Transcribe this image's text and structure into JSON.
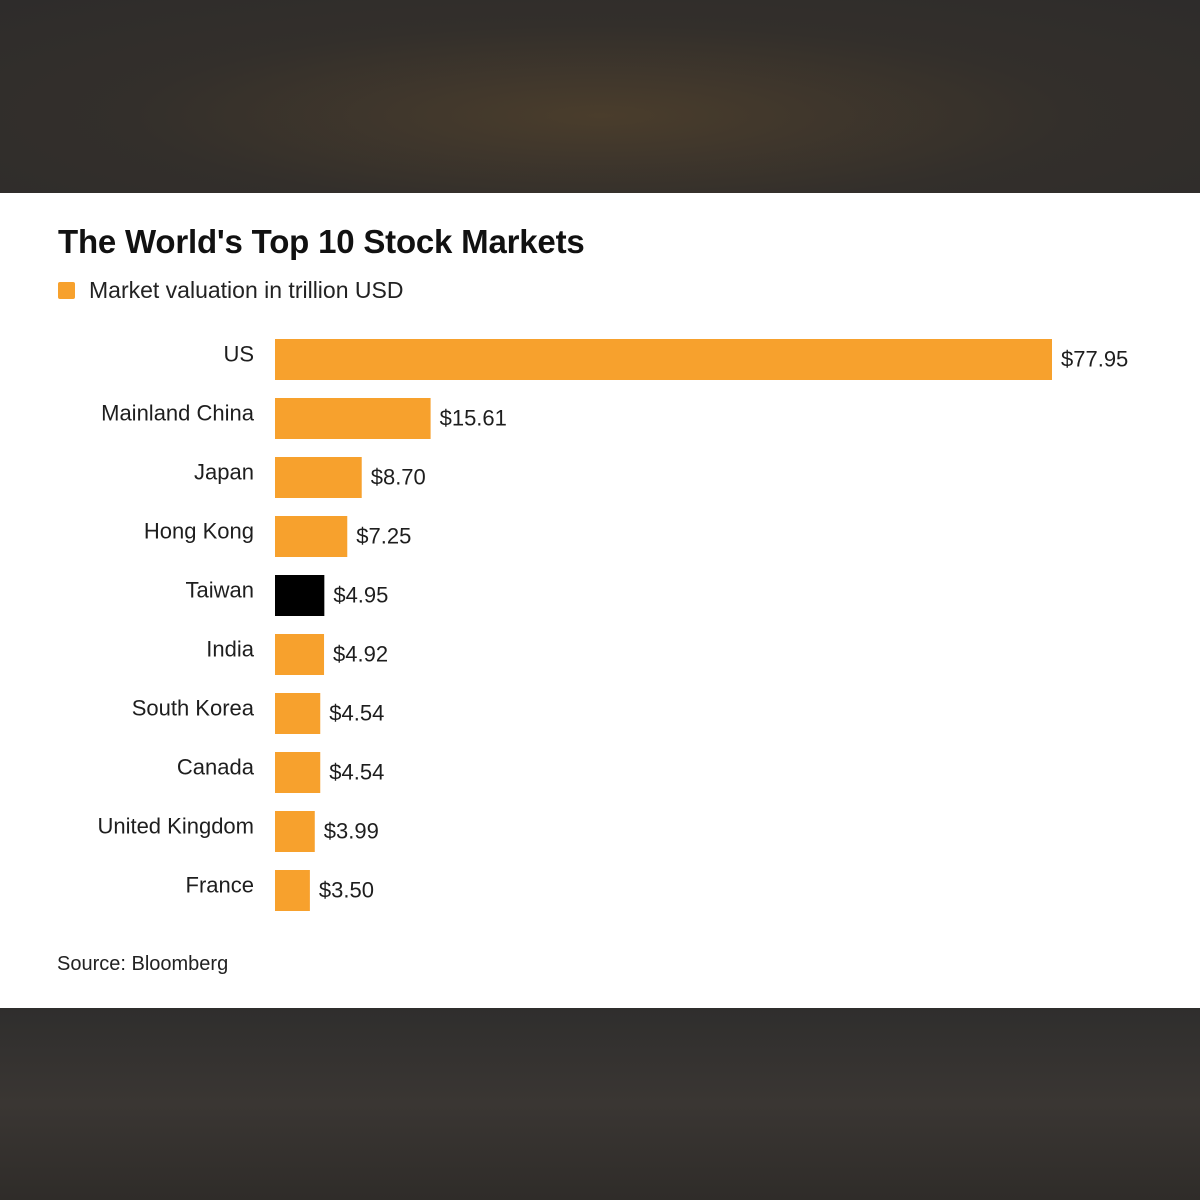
{
  "chart_data": {
    "type": "bar",
    "orientation": "horizontal",
    "title": "The World's Top 10 Stock Markets",
    "legend": {
      "label": "Market valuation in trillion USD",
      "placement": "top-left"
    },
    "categories": [
      "US",
      "Mainland China",
      "Japan",
      "Hong Kong",
      "Taiwan",
      "India",
      "South Korea",
      "Canada",
      "United Kingdom",
      "France"
    ],
    "values": [
      77.95,
      15.61,
      8.7,
      7.25,
      4.95,
      4.92,
      4.54,
      4.54,
      3.99,
      3.5
    ],
    "value_labels": [
      "$77.95",
      "$15.61",
      "$8.70",
      "$7.25",
      "$4.95",
      "$4.92",
      "$4.54",
      "$4.54",
      "$3.99",
      "$3.50"
    ],
    "bar_colors": [
      "#f7a12d",
      "#f7a12d",
      "#f7a12d",
      "#f7a12d",
      "#000000",
      "#f7a12d",
      "#f7a12d",
      "#f7a12d",
      "#f7a12d",
      "#f7a12d"
    ],
    "highlighted_category": "Taiwan",
    "xlim": [
      0,
      77.95
    ],
    "grid": false,
    "source": "Source: Bloomberg"
  },
  "colors": {
    "accent": "#f7a12d",
    "highlight": "#000000",
    "text": "#1e1e1e",
    "card_background": "#ffffff"
  }
}
